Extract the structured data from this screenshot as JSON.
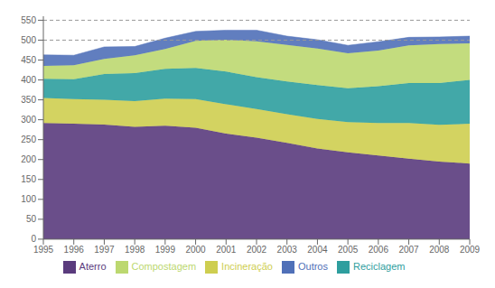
{
  "chart_data": {
    "type": "area",
    "stacked": true,
    "x": [
      1995,
      1996,
      1997,
      1998,
      1999,
      2000,
      2001,
      2002,
      2003,
      2004,
      2005,
      2006,
      2007,
      2008,
      2009
    ],
    "xlim": [
      1995,
      2009
    ],
    "xticks": [
      1995,
      1996,
      1997,
      1998,
      1999,
      2000,
      2001,
      2002,
      2003,
      2004,
      2005,
      2006,
      2007,
      2008,
      2009
    ],
    "ylim": [
      0,
      560
    ],
    "yticks": [
      0,
      50,
      100,
      150,
      200,
      250,
      300,
      350,
      400,
      450,
      500,
      550
    ],
    "series": [
      {
        "name": "Aterro",
        "color": "#5a3b7d",
        "values": [
          292,
          290,
          288,
          282,
          285,
          280,
          265,
          255,
          242,
          228,
          218,
          210,
          202,
          195,
          190
        ]
      },
      {
        "name": "Incineração",
        "color": "#cece50",
        "values": [
          63,
          62,
          62,
          65,
          68,
          72,
          74,
          72,
          72,
          74,
          76,
          82,
          90,
          92,
          100
        ]
      },
      {
        "name": "Reciclagem",
        "color": "#2e9e9e",
        "values": [
          48,
          50,
          65,
          70,
          75,
          78,
          82,
          80,
          82,
          85,
          85,
          92,
          100,
          105,
          110
        ]
      },
      {
        "name": "Compostagem",
        "color": "#bcd870",
        "values": [
          32,
          35,
          38,
          45,
          50,
          68,
          80,
          90,
          92,
          92,
          88,
          90,
          95,
          98,
          92
        ]
      },
      {
        "name": "Outros",
        "color": "#5070b8",
        "values": [
          28,
          25,
          30,
          22,
          27,
          24,
          24,
          28,
          22,
          22,
          20,
          22,
          20,
          18,
          18
        ]
      }
    ],
    "hlines": [
      500,
      550
    ],
    "grid": false,
    "legend": "bottom"
  }
}
